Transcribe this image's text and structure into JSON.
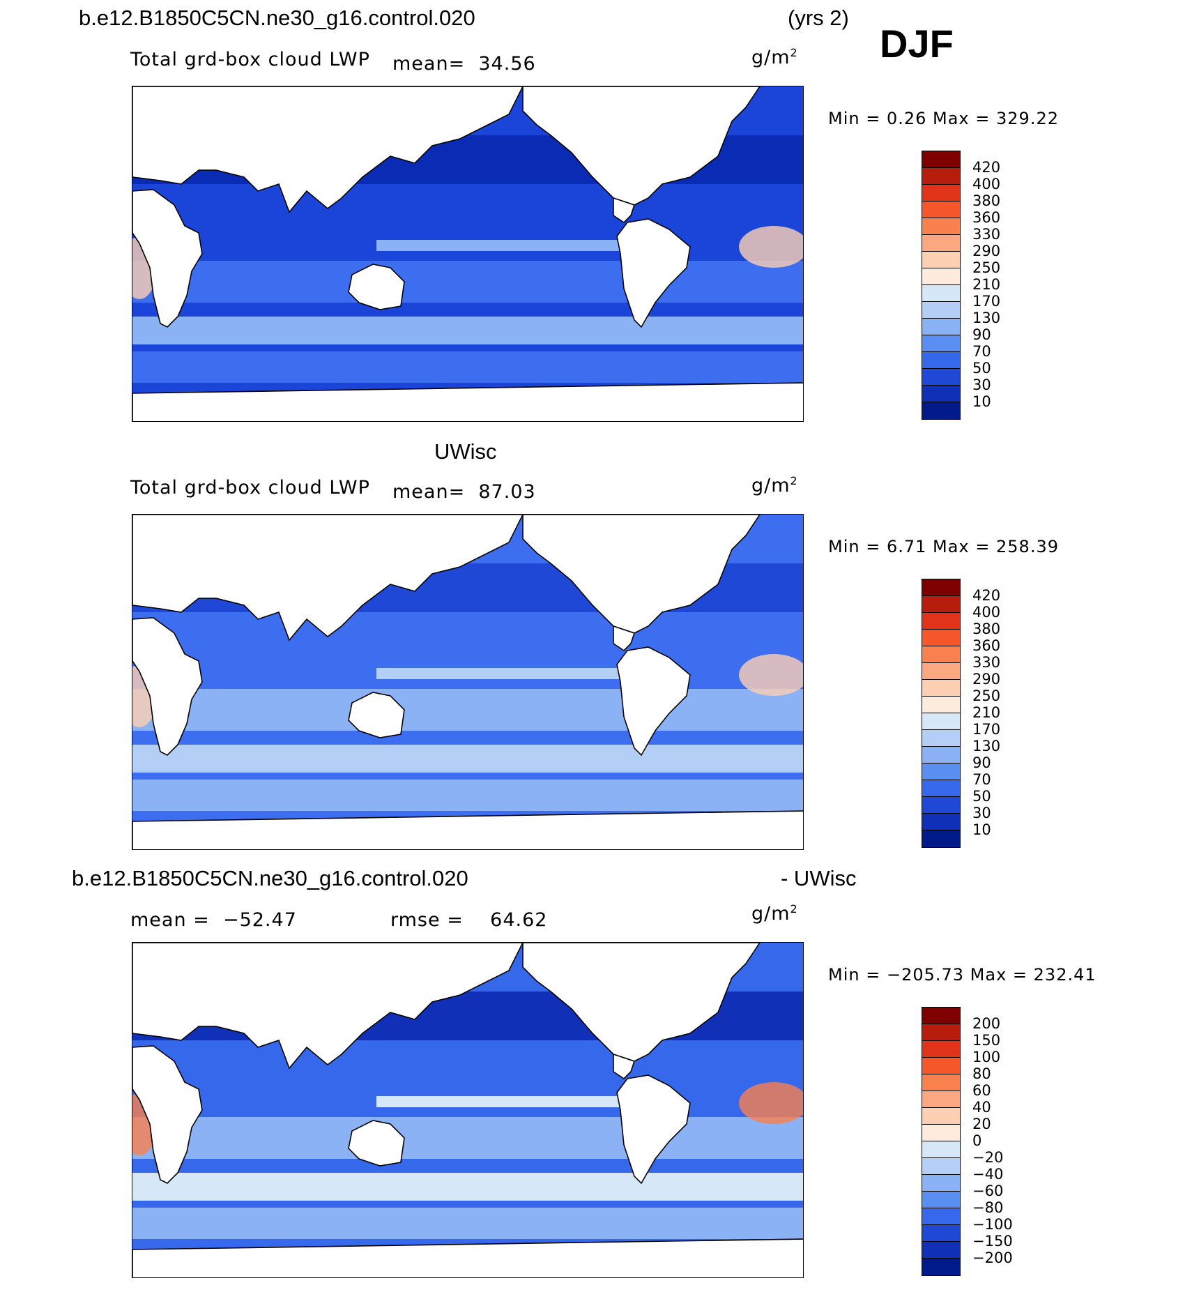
{
  "header": {
    "case_name": "b.e12.B1850C5CN.ne30_g16.control.020",
    "years": "(yrs 2)",
    "season": "DJF"
  },
  "panels": [
    {
      "title": "",
      "variable": "Total grd-box cloud LWP",
      "mean_label": "mean=",
      "mean_value": "34.56",
      "units": "g/m",
      "units_sup": "2",
      "minmax": "Min =     0.26  Max  =  329.22",
      "colorbar_levels": [
        "420",
        "400",
        "380",
        "360",
        "330",
        "290",
        "250",
        "210",
        "170",
        "130",
        "90",
        "70",
        "50",
        "30",
        "10"
      ],
      "colorbar_colors": [
        "#7f0000",
        "#b71c0c",
        "#e0331a",
        "#f5562a",
        "#f9804f",
        "#fba882",
        "#fdd0b4",
        "#fdecdd",
        "#d6e8f8",
        "#b3cff5",
        "#8ab2f5",
        "#5a8ef0",
        "#3568ea",
        "#1f48d6",
        "#1030b8",
        "#001a8a"
      ],
      "map_palette": {
        "deep": "#0a2bb3",
        "mid": "#1a45d8",
        "light": "#3d6ef0",
        "pale": "#8ab2f5",
        "warm": "#fdd0b4"
      }
    },
    {
      "title": "UWisc",
      "variable": "Total grd-box cloud LWP",
      "mean_label": "mean=",
      "mean_value": "87.03",
      "units": "g/m",
      "units_sup": "2",
      "minmax": "Min =     6.71  Max  =  258.39",
      "colorbar_levels": [
        "420",
        "400",
        "380",
        "360",
        "330",
        "290",
        "250",
        "210",
        "170",
        "130",
        "90",
        "70",
        "50",
        "30",
        "10"
      ],
      "colorbar_colors": [
        "#7f0000",
        "#b71c0c",
        "#e0331a",
        "#f5562a",
        "#f9804f",
        "#fba882",
        "#fdd0b4",
        "#fdecdd",
        "#d6e8f8",
        "#b3cff5",
        "#8ab2f5",
        "#5a8ef0",
        "#3568ea",
        "#1f48d6",
        "#1030b8",
        "#001a8a"
      ],
      "map_palette": {
        "deep": "#1f48d6",
        "mid": "#3d6ef0",
        "light": "#8ab2f5",
        "pale": "#b3cff5",
        "warm": "#fdd0b4"
      }
    },
    {
      "title_left": "b.e12.B1850C5CN.ne30_g16.control.020",
      "title_right": "- UWisc",
      "mean_label": "mean = ",
      "mean_value": "−52.47",
      "rmse_label": "rmse = ",
      "rmse_value": "64.62",
      "units": "g/m",
      "units_sup": "2",
      "minmax": "Min  =  −205.73  Max  =  232.41",
      "colorbar_levels": [
        "200",
        "150",
        "100",
        "80",
        "60",
        "40",
        "20",
        "0",
        "−20",
        "−40",
        "−60",
        "−80",
        "−100",
        "−150",
        "−200"
      ],
      "colorbar_colors": [
        "#7f0000",
        "#b71c0c",
        "#e0331a",
        "#f5562a",
        "#f9804f",
        "#fba882",
        "#fdd0b4",
        "#fdecdd",
        "#d6e8f8",
        "#b3cff5",
        "#8ab2f5",
        "#5a8ef0",
        "#3568ea",
        "#1f48d6",
        "#1030b8",
        "#001a8a"
      ],
      "map_palette": {
        "deep": "#1030b8",
        "mid": "#3568ea",
        "light": "#8ab2f5",
        "pale": "#d6e8f8",
        "warm": "#f9804f"
      }
    }
  ]
}
